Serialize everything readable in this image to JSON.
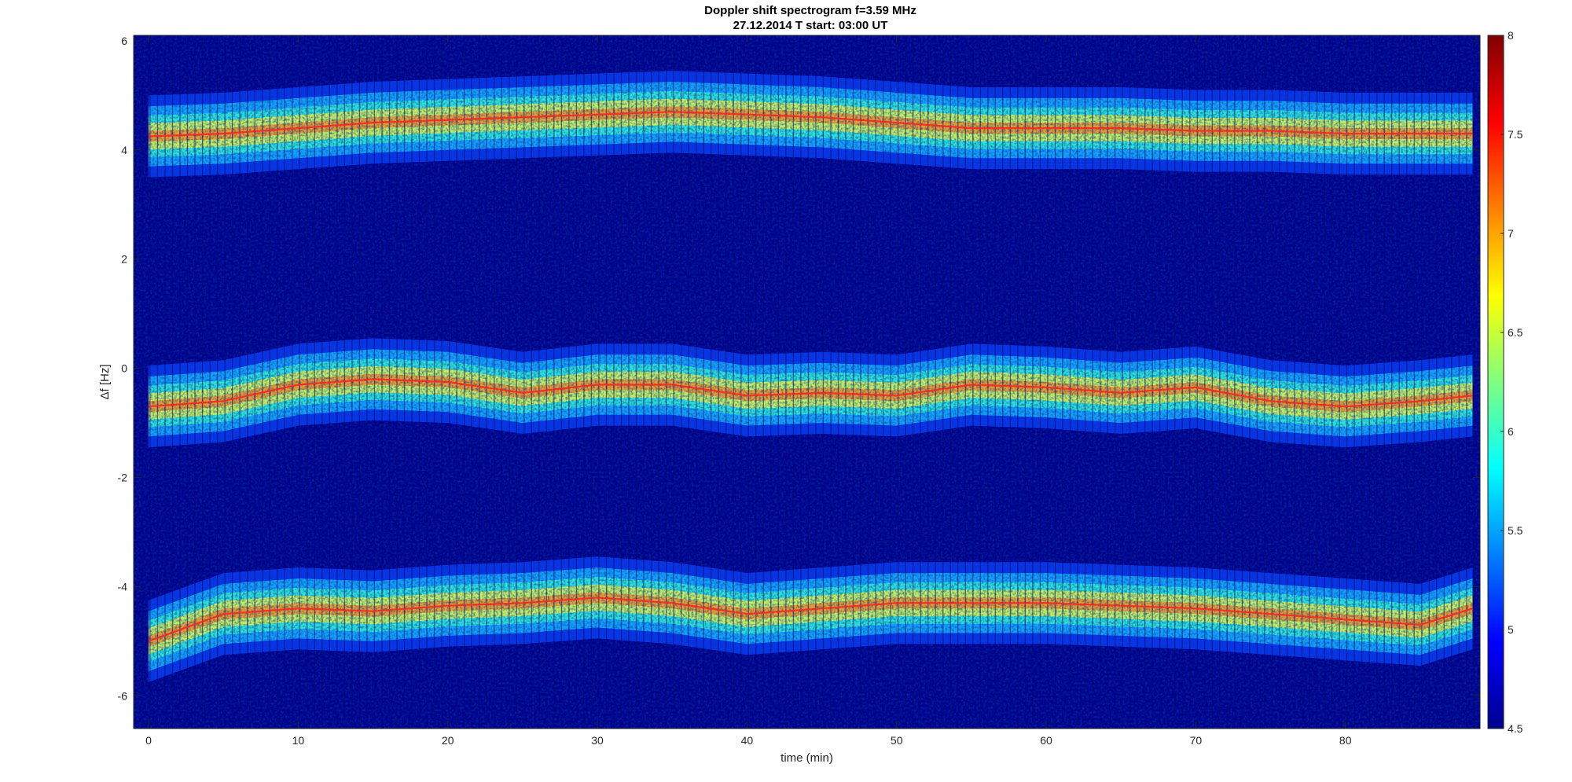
{
  "chart_data": {
    "type": "heatmap",
    "title_line1": "Doppler shift spectrogram f=3.59 MHz",
    "title_line2": "27.12.2014   T start: 03:00 UT",
    "xlabel": "time (min)",
    "ylabel": "Δf [Hz]",
    "xlim": [
      -1,
      89
    ],
    "ylim": [
      -6.6,
      6.1
    ],
    "x_ticks": [
      0,
      10,
      20,
      30,
      40,
      50,
      60,
      70,
      80
    ],
    "x_tick_labels": [
      "0",
      "10",
      "20",
      "30",
      "40",
      "50",
      "60",
      "70",
      "80"
    ],
    "y_ticks": [
      6,
      4,
      2,
      0,
      -2,
      -4,
      -6
    ],
    "y_tick_labels": [
      "6",
      "4",
      "2",
      "0",
      "-2",
      "-4",
      "-6"
    ],
    "colorbar": {
      "colormap": "jet",
      "range": [
        4.5,
        8
      ],
      "ticks": [
        8,
        7.5,
        7,
        6.5,
        6,
        5.5,
        5,
        4.5
      ],
      "tick_labels": [
        "8",
        "7.5",
        "7",
        "6.5",
        "6",
        "5.5",
        "5",
        "4.5"
      ]
    },
    "series": [
      {
        "x": [
          0,
          5,
          10,
          15,
          20,
          25,
          30,
          35,
          40,
          45,
          50,
          55,
          60,
          65,
          70,
          75,
          80,
          85,
          88.5
        ],
        "values": [
          4.25,
          4.3,
          4.4,
          4.5,
          4.55,
          4.6,
          4.65,
          4.7,
          4.65,
          4.6,
          4.5,
          4.4,
          4.4,
          4.4,
          4.35,
          4.35,
          4.3,
          4.3,
          4.3
        ]
      },
      {
        "x": [
          0,
          5,
          10,
          15,
          20,
          25,
          30,
          35,
          40,
          45,
          50,
          55,
          60,
          65,
          70,
          75,
          80,
          85,
          88.5
        ],
        "values": [
          -0.7,
          -0.6,
          -0.3,
          -0.2,
          -0.25,
          -0.45,
          -0.3,
          -0.3,
          -0.5,
          -0.45,
          -0.5,
          -0.3,
          -0.35,
          -0.45,
          -0.35,
          -0.6,
          -0.7,
          -0.6,
          -0.5
        ]
      },
      {
        "x": [
          0,
          5,
          10,
          15,
          20,
          25,
          30,
          35,
          40,
          45,
          50,
          55,
          60,
          65,
          70,
          75,
          80,
          85,
          88.5
        ],
        "values": [
          -5.0,
          -4.5,
          -4.4,
          -4.45,
          -4.35,
          -4.3,
          -4.2,
          -4.3,
          -4.5,
          -4.4,
          -4.3,
          -4.3,
          -4.3,
          -4.35,
          -4.4,
          -4.5,
          -4.6,
          -4.7,
          -4.4
        ]
      }
    ]
  }
}
